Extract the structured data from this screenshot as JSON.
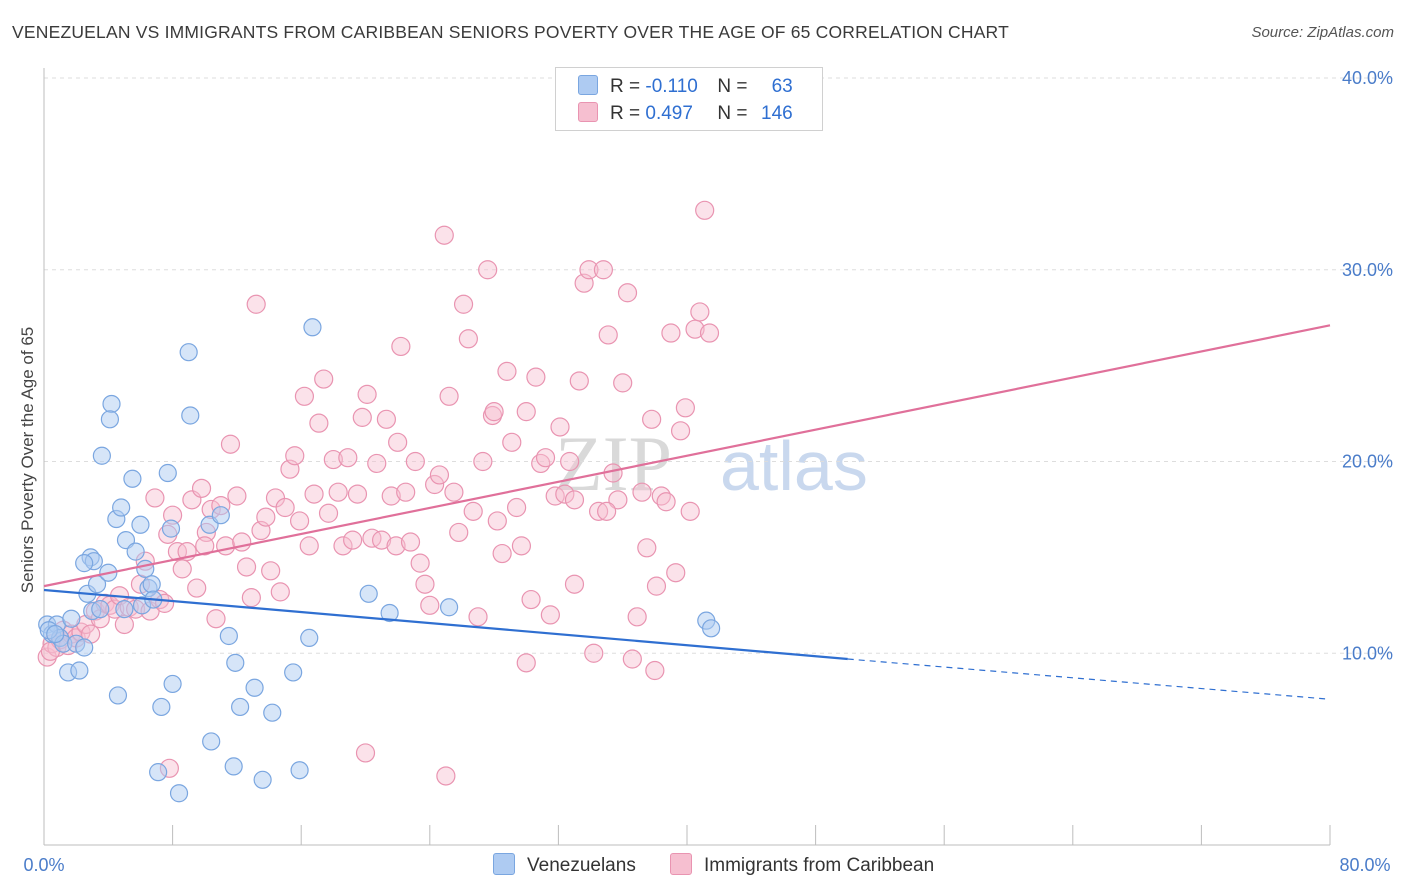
{
  "title": "VENEZUELAN VS IMMIGRANTS FROM CARIBBEAN SENIORS POVERTY OVER THE AGE OF 65 CORRELATION CHART",
  "source": "Source: ZipAtlas.com",
  "watermark": {
    "zip": "ZIP",
    "atlas": "atlas"
  },
  "colors": {
    "blue": "#4a7cc9",
    "blue_fill": "#aecbf2",
    "blue_stroke": "#7aa6e0",
    "blue_line": "#2f6fd1",
    "pink_fill": "#f6bfd0",
    "pink_stroke": "#e994b1",
    "pink_line": "#e0709a",
    "grid": "#dddddd"
  },
  "legend": {
    "rows": [
      {
        "r_label": "R = ",
        "r_value": "-0.110",
        "n_label": "N = ",
        "n_value": "63",
        "color": "#aecbf2"
      },
      {
        "r_label": "R = ",
        "r_value": "0.497",
        "n_label": "N = ",
        "n_value": "146",
        "color": "#f6bfd0"
      }
    ]
  },
  "bottom_legend": [
    {
      "label": "Venezuelans",
      "color": "#aecbf2"
    },
    {
      "label": "Immigrants from Caribbean",
      "color": "#f6bfd0"
    }
  ],
  "chart_data": {
    "type": "scatter",
    "title": "VENEZUELAN VS IMMIGRANTS FROM CARIBBEAN SENIORS POVERTY OVER THE AGE OF 65 CORRELATION CHART",
    "xlabel": "",
    "ylabel": "Seniors Poverty Over the Age of 65",
    "xlim": [
      0,
      80
    ],
    "ylim": [
      0,
      40
    ],
    "x_tick_labels": [
      "0.0%",
      "80.0%"
    ],
    "y_ticks": [
      10,
      20,
      30,
      40
    ],
    "y_tick_labels": [
      "10.0%",
      "20.0%",
      "30.0%",
      "40.0%"
    ],
    "grid": true,
    "legend_position": "top-center",
    "series": [
      {
        "name": "Venezuelans",
        "r": -0.11,
        "n": 63,
        "trend": {
          "x": [
            0,
            50
          ],
          "y": [
            13.3,
            9.7
          ],
          "dashed_to": [
            80,
            7.6
          ]
        },
        "points": [
          [
            0.2,
            11.5
          ],
          [
            0.5,
            11.0
          ],
          [
            0.8,
            11.5
          ],
          [
            1.0,
            10.8
          ],
          [
            1.2,
            10.5
          ],
          [
            1.5,
            9.0
          ],
          [
            1.7,
            11.8
          ],
          [
            2.0,
            10.5
          ],
          [
            2.2,
            9.1
          ],
          [
            2.5,
            10.3
          ],
          [
            2.7,
            13.1
          ],
          [
            2.9,
            15.0
          ],
          [
            3.0,
            12.2
          ],
          [
            3.1,
            14.8
          ],
          [
            3.3,
            13.6
          ],
          [
            3.5,
            12.3
          ],
          [
            3.6,
            20.3
          ],
          [
            4.0,
            14.2
          ],
          [
            4.2,
            23.0
          ],
          [
            4.1,
            22.2
          ],
          [
            4.5,
            17.0
          ],
          [
            4.8,
            17.6
          ],
          [
            4.6,
            7.8
          ],
          [
            5.0,
            12.3
          ],
          [
            5.1,
            15.9
          ],
          [
            5.5,
            19.1
          ],
          [
            5.7,
            15.3
          ],
          [
            6.0,
            16.7
          ],
          [
            6.1,
            12.5
          ],
          [
            6.3,
            14.4
          ],
          [
            6.5,
            13.4
          ],
          [
            6.7,
            13.6
          ],
          [
            6.8,
            12.8
          ],
          [
            7.1,
            3.8
          ],
          [
            7.3,
            7.2
          ],
          [
            7.9,
            16.5
          ],
          [
            8.0,
            8.4
          ],
          [
            8.4,
            2.7
          ],
          [
            7.7,
            19.4
          ],
          [
            9.0,
            25.7
          ],
          [
            9.1,
            22.4
          ],
          [
            10.4,
            5.4
          ],
          [
            10.3,
            16.7
          ],
          [
            11.0,
            17.2
          ],
          [
            11.5,
            10.9
          ],
          [
            11.8,
            4.1
          ],
          [
            11.9,
            9.5
          ],
          [
            12.2,
            7.2
          ],
          [
            13.1,
            8.2
          ],
          [
            13.6,
            3.4
          ],
          [
            14.2,
            6.9
          ],
          [
            15.5,
            9.0
          ],
          [
            15.9,
            3.9
          ],
          [
            16.5,
            10.8
          ],
          [
            16.7,
            27.0
          ],
          [
            20.2,
            13.1
          ],
          [
            21.5,
            12.1
          ],
          [
            25.2,
            12.4
          ],
          [
            41.2,
            11.7
          ],
          [
            41.5,
            11.3
          ],
          [
            0.3,
            11.2
          ],
          [
            2.5,
            14.7
          ],
          [
            0.7,
            11.0
          ]
        ]
      },
      {
        "name": "Immigrants from Caribbean",
        "r": 0.497,
        "n": 146,
        "trend": {
          "x": [
            0,
            80
          ],
          "y": [
            13.5,
            27.1
          ]
        },
        "points": [
          [
            0.2,
            9.8
          ],
          [
            0.5,
            10.5
          ],
          [
            0.8,
            10.3
          ],
          [
            1.0,
            10.7
          ],
          [
            1.2,
            11.2
          ],
          [
            1.5,
            10.4
          ],
          [
            1.7,
            11.0
          ],
          [
            2.0,
            10.8
          ],
          [
            2.3,
            11.1
          ],
          [
            2.6,
            11.5
          ],
          [
            2.9,
            11.0
          ],
          [
            3.2,
            12.2
          ],
          [
            3.5,
            11.8
          ],
          [
            3.8,
            12.6
          ],
          [
            4.1,
            12.5
          ],
          [
            4.4,
            12.3
          ],
          [
            4.7,
            13.0
          ],
          [
            5.0,
            11.5
          ],
          [
            5.3,
            12.4
          ],
          [
            5.7,
            12.3
          ],
          [
            6.0,
            13.6
          ],
          [
            6.3,
            14.8
          ],
          [
            6.6,
            12.2
          ],
          [
            6.9,
            18.1
          ],
          [
            7.2,
            12.8
          ],
          [
            7.5,
            12.6
          ],
          [
            7.7,
            16.2
          ],
          [
            8.0,
            17.2
          ],
          [
            8.3,
            15.3
          ],
          [
            8.6,
            14.4
          ],
          [
            8.9,
            15.3
          ],
          [
            9.2,
            18.0
          ],
          [
            9.5,
            13.4
          ],
          [
            9.8,
            18.6
          ],
          [
            10.1,
            16.3
          ],
          [
            10.4,
            17.5
          ],
          [
            10.7,
            11.8
          ],
          [
            11.0,
            17.7
          ],
          [
            11.3,
            15.6
          ],
          [
            11.6,
            20.9
          ],
          [
            12.0,
            18.2
          ],
          [
            12.3,
            15.8
          ],
          [
            12.6,
            14.5
          ],
          [
            12.9,
            12.9
          ],
          [
            13.2,
            28.2
          ],
          [
            13.5,
            16.4
          ],
          [
            13.8,
            17.1
          ],
          [
            14.1,
            14.3
          ],
          [
            14.4,
            18.1
          ],
          [
            14.7,
            13.2
          ],
          [
            15.0,
            17.6
          ],
          [
            15.3,
            19.6
          ],
          [
            15.6,
            20.3
          ],
          [
            15.9,
            16.9
          ],
          [
            16.2,
            23.4
          ],
          [
            16.5,
            15.6
          ],
          [
            16.8,
            18.3
          ],
          [
            17.1,
            22.0
          ],
          [
            17.4,
            24.3
          ],
          [
            17.7,
            17.3
          ],
          [
            18.0,
            20.1
          ],
          [
            18.3,
            18.4
          ],
          [
            18.6,
            15.6
          ],
          [
            18.9,
            20.2
          ],
          [
            19.2,
            15.9
          ],
          [
            19.5,
            18.3
          ],
          [
            19.8,
            22.3
          ],
          [
            20.1,
            23.5
          ],
          [
            20.4,
            16.0
          ],
          [
            20.7,
            19.9
          ],
          [
            21.0,
            15.9
          ],
          [
            21.3,
            22.2
          ],
          [
            21.6,
            18.2
          ],
          [
            21.9,
            15.6
          ],
          [
            22.2,
            26.0
          ],
          [
            22.5,
            18.4
          ],
          [
            22.8,
            15.8
          ],
          [
            23.1,
            20.0
          ],
          [
            23.4,
            14.7
          ],
          [
            23.7,
            13.6
          ],
          [
            24.0,
            12.5
          ],
          [
            24.3,
            18.8
          ],
          [
            24.6,
            19.3
          ],
          [
            24.9,
            31.8
          ],
          [
            25.2,
            23.4
          ],
          [
            25.5,
            18.4
          ],
          [
            25.8,
            16.3
          ],
          [
            26.1,
            28.2
          ],
          [
            26.4,
            26.4
          ],
          [
            26.7,
            17.4
          ],
          [
            27.0,
            11.9
          ],
          [
            27.3,
            20.0
          ],
          [
            27.6,
            30.0
          ],
          [
            27.9,
            22.4
          ],
          [
            28.2,
            16.9
          ],
          [
            28.5,
            15.2
          ],
          [
            28.8,
            24.7
          ],
          [
            29.1,
            21.0
          ],
          [
            29.4,
            17.6
          ],
          [
            29.7,
            15.6
          ],
          [
            30.0,
            22.6
          ],
          [
            30.3,
            12.8
          ],
          [
            30.6,
            24.4
          ],
          [
            30.9,
            19.9
          ],
          [
            31.2,
            20.2
          ],
          [
            31.5,
            12.0
          ],
          [
            31.8,
            18.2
          ],
          [
            32.1,
            21.8
          ],
          [
            32.4,
            18.3
          ],
          [
            32.7,
            20.0
          ],
          [
            33.0,
            13.6
          ],
          [
            33.3,
            24.2
          ],
          [
            33.6,
            29.3
          ],
          [
            33.9,
            30.0
          ],
          [
            34.2,
            10.0
          ],
          [
            34.5,
            17.4
          ],
          [
            34.8,
            30.0
          ],
          [
            35.1,
            26.6
          ],
          [
            35.4,
            19.4
          ],
          [
            35.7,
            18.0
          ],
          [
            36.0,
            24.1
          ],
          [
            36.3,
            28.8
          ],
          [
            36.6,
            9.7
          ],
          [
            36.9,
            11.9
          ],
          [
            37.2,
            18.4
          ],
          [
            37.5,
            15.5
          ],
          [
            37.8,
            22.2
          ],
          [
            38.1,
            13.5
          ],
          [
            38.4,
            18.2
          ],
          [
            38.7,
            17.9
          ],
          [
            39.0,
            26.7
          ],
          [
            39.3,
            14.2
          ],
          [
            39.6,
            21.6
          ],
          [
            39.9,
            22.8
          ],
          [
            40.2,
            17.4
          ],
          [
            40.5,
            26.9
          ],
          [
            40.8,
            27.8
          ],
          [
            41.1,
            33.1
          ],
          [
            41.4,
            26.7
          ],
          [
            0.4,
            10.1
          ],
          [
            10.0,
            15.6
          ],
          [
            7.8,
            4.0
          ],
          [
            20.0,
            4.8
          ],
          [
            25.0,
            3.6
          ],
          [
            30.0,
            9.5
          ],
          [
            35.0,
            17.4
          ],
          [
            22.0,
            21.0
          ],
          [
            28.0,
            22.6
          ],
          [
            33.0,
            18.0
          ],
          [
            38.0,
            9.1
          ]
        ]
      }
    ]
  }
}
